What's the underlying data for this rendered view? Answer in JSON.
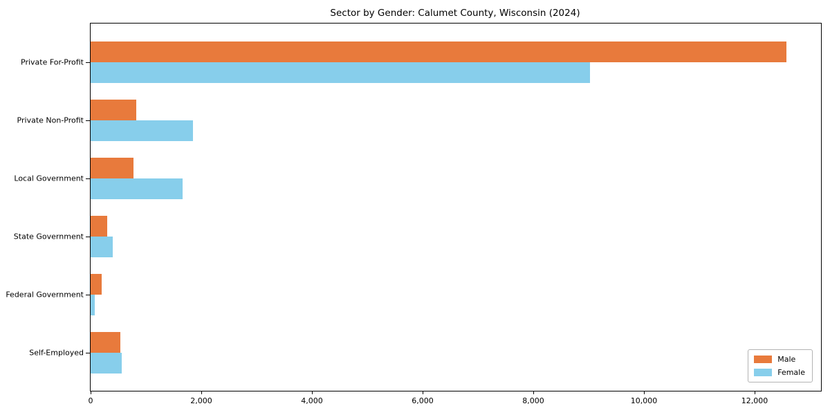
{
  "chart_data": {
    "type": "bar",
    "orientation": "horizontal",
    "title": "Sector by Gender: Calumet County, Wisconsin (2024)",
    "categories": [
      "Private For-Profit",
      "Private Non-Profit",
      "Local Government",
      "State Government",
      "Federal Government",
      "Self-Employed"
    ],
    "series": [
      {
        "name": "Male",
        "color": "#E87A3C",
        "values": [
          12570,
          820,
          775,
          300,
          195,
          540
        ]
      },
      {
        "name": "Female",
        "color": "#87CEEB",
        "values": [
          9020,
          1850,
          1665,
          395,
          70,
          560
        ]
      }
    ],
    "xlim": [
      0,
      13200
    ],
    "x_ticks": [
      0,
      2000,
      4000,
      6000,
      8000,
      10000,
      12000
    ],
    "x_tick_labels": [
      "0",
      "2,000",
      "4,000",
      "6,000",
      "8,000",
      "10,000",
      "12,000"
    ],
    "grid": false,
    "legend": {
      "position": "lower right"
    },
    "colors": {
      "spine": "#000000",
      "text": "#000000",
      "background": "#ffffff"
    }
  }
}
